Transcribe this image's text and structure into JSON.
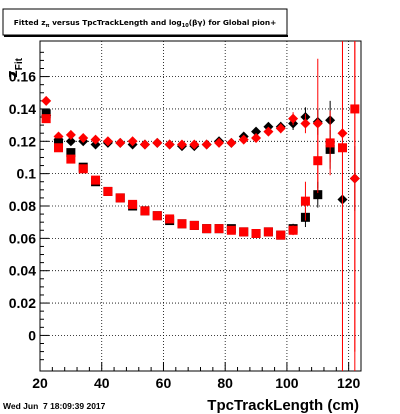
{
  "canvas": {
    "title": "Fitted z_{#pi} versus TpcTrackLength and log_{10}(#beta#gamma) for Global pion+",
    "title_parts": {
      "pre": "Fitted ",
      "z": "z",
      "z_sub": "π",
      "mid": " versus TpcTrackLength and log",
      "log_sub": "10",
      "post": "(βγ) for Global pion+"
    },
    "timestamp": "Wed Jun  7 18:09:39 2017",
    "background": "#ffffff"
  },
  "chart_data": {
    "type": "scatter",
    "xlabel": "TpcTrackLength (cm)",
    "ylabel": "z",
    "ylabel_sub": "Fit",
    "xlim": [
      20,
      124
    ],
    "ylim": [
      -0.022,
      0.182
    ],
    "x_ticks": [
      20,
      40,
      60,
      80,
      100,
      120
    ],
    "x_tick_labels": [
      "20",
      "40",
      "60",
      "80",
      "100",
      "120"
    ],
    "y_ticks": [
      0,
      0.02,
      0.04,
      0.06,
      0.08,
      0.1,
      0.12,
      0.14,
      0.16
    ],
    "y_tick_labels": [
      "0",
      "0.02",
      "0.04",
      "0.06",
      "0.08",
      "0.1",
      "0.12",
      "0.14",
      "0.16"
    ],
    "grid": true,
    "series": [
      {
        "marker": "diamond",
        "color": "#000000",
        "points": [
          {
            "x": 22,
            "y": 0.136,
            "err": 0.002
          },
          {
            "x": 26,
            "y": 0.121,
            "err": 0.001
          },
          {
            "x": 30,
            "y": 0.12,
            "err": 0.001
          },
          {
            "x": 34,
            "y": 0.12,
            "err": 0.001
          },
          {
            "x": 38,
            "y": 0.118,
            "err": 0.001
          },
          {
            "x": 42,
            "y": 0.119,
            "err": 0.001
          },
          {
            "x": 46,
            "y": 0.119,
            "err": 0.001
          },
          {
            "x": 50,
            "y": 0.118,
            "err": 0.001
          },
          {
            "x": 54,
            "y": 0.118,
            "err": 0.001
          },
          {
            "x": 58,
            "y": 0.119,
            "err": 0.001
          },
          {
            "x": 62,
            "y": 0.118,
            "err": 0.001
          },
          {
            "x": 66,
            "y": 0.117,
            "err": 0.001
          },
          {
            "x": 70,
            "y": 0.117,
            "err": 0.001
          },
          {
            "x": 74,
            "y": 0.118,
            "err": 0.001
          },
          {
            "x": 78,
            "y": 0.12,
            "err": 0.001
          },
          {
            "x": 82,
            "y": 0.119,
            "err": 0.001
          },
          {
            "x": 86,
            "y": 0.123,
            "err": 0.002
          },
          {
            "x": 90,
            "y": 0.126,
            "err": 0.002
          },
          {
            "x": 94,
            "y": 0.129,
            "err": 0.002
          },
          {
            "x": 98,
            "y": 0.129,
            "err": 0.003
          },
          {
            "x": 102,
            "y": 0.131,
            "err": 0.004
          },
          {
            "x": 106,
            "y": 0.135,
            "err": 0.006
          },
          {
            "x": 110,
            "y": 0.132,
            "err": 0.008
          },
          {
            "x": 114,
            "y": 0.133,
            "err": 0.012
          },
          {
            "x": 118,
            "y": 0.084,
            "err": 0.04
          },
          {
            "x": 122,
            "y": 0.097,
            "err": 0.02
          }
        ]
      },
      {
        "marker": "diamond",
        "color": "#ff0000",
        "points": [
          {
            "x": 22,
            "y": 0.145,
            "err": 0.002
          },
          {
            "x": 26,
            "y": 0.123,
            "err": 0.001
          },
          {
            "x": 30,
            "y": 0.124,
            "err": 0.001
          },
          {
            "x": 34,
            "y": 0.122,
            "err": 0.001
          },
          {
            "x": 38,
            "y": 0.121,
            "err": 0.001
          },
          {
            "x": 42,
            "y": 0.12,
            "err": 0.001
          },
          {
            "x": 46,
            "y": 0.119,
            "err": 0.001
          },
          {
            "x": 50,
            "y": 0.12,
            "err": 0.001
          },
          {
            "x": 54,
            "y": 0.118,
            "err": 0.001
          },
          {
            "x": 58,
            "y": 0.119,
            "err": 0.001
          },
          {
            "x": 62,
            "y": 0.118,
            "err": 0.001
          },
          {
            "x": 66,
            "y": 0.118,
            "err": 0.001
          },
          {
            "x": 70,
            "y": 0.118,
            "err": 0.001
          },
          {
            "x": 74,
            "y": 0.118,
            "err": 0.001
          },
          {
            "x": 78,
            "y": 0.119,
            "err": 0.001
          },
          {
            "x": 82,
            "y": 0.119,
            "err": 0.001
          },
          {
            "x": 86,
            "y": 0.121,
            "err": 0.002
          },
          {
            "x": 90,
            "y": 0.122,
            "err": 0.002
          },
          {
            "x": 94,
            "y": 0.126,
            "err": 0.002
          },
          {
            "x": 98,
            "y": 0.128,
            "err": 0.003
          },
          {
            "x": 102,
            "y": 0.134,
            "err": 0.004
          },
          {
            "x": 106,
            "y": 0.131,
            "err": 0.006
          },
          {
            "x": 110,
            "y": 0.131,
            "err": 0.04
          },
          {
            "x": 114,
            "y": 0.119,
            "err": 0.012
          },
          {
            "x": 118,
            "y": 0.125,
            "err": 0.15
          },
          {
            "x": 122,
            "y": 0.097,
            "err": 0.15
          }
        ]
      },
      {
        "marker": "square",
        "color": "#000000",
        "points": [
          {
            "x": 22,
            "y": 0.137,
            "err": 0.002
          },
          {
            "x": 26,
            "y": 0.119,
            "err": 0.001
          },
          {
            "x": 30,
            "y": 0.113,
            "err": 0.001
          },
          {
            "x": 34,
            "y": 0.104,
            "err": 0.001
          },
          {
            "x": 38,
            "y": 0.095,
            "err": 0.001
          },
          {
            "x": 42,
            "y": 0.089,
            "err": 0.001
          },
          {
            "x": 46,
            "y": 0.085,
            "err": 0.001
          },
          {
            "x": 50,
            "y": 0.08,
            "err": 0.001
          },
          {
            "x": 54,
            "y": 0.077,
            "err": 0.001
          },
          {
            "x": 58,
            "y": 0.074,
            "err": 0.001
          },
          {
            "x": 62,
            "y": 0.071,
            "err": 0.001
          },
          {
            "x": 66,
            "y": 0.069,
            "err": 0.001
          },
          {
            "x": 70,
            "y": 0.068,
            "err": 0.001
          },
          {
            "x": 74,
            "y": 0.066,
            "err": 0.001
          },
          {
            "x": 78,
            "y": 0.066,
            "err": 0.001
          },
          {
            "x": 82,
            "y": 0.066,
            "err": 0.001
          },
          {
            "x": 86,
            "y": 0.064,
            "err": 0.001
          },
          {
            "x": 90,
            "y": 0.063,
            "err": 0.001
          },
          {
            "x": 94,
            "y": 0.064,
            "err": 0.002
          },
          {
            "x": 98,
            "y": 0.062,
            "err": 0.002
          },
          {
            "x": 102,
            "y": 0.066,
            "err": 0.003
          },
          {
            "x": 106,
            "y": 0.073,
            "err": 0.006
          },
          {
            "x": 110,
            "y": 0.087,
            "err": 0.008
          },
          {
            "x": 114,
            "y": 0.115,
            "err": 0.012
          }
        ]
      },
      {
        "marker": "square",
        "color": "#ff0000",
        "points": [
          {
            "x": 22,
            "y": 0.134,
            "err": 0.002
          },
          {
            "x": 26,
            "y": 0.116,
            "err": 0.001
          },
          {
            "x": 30,
            "y": 0.109,
            "err": 0.001
          },
          {
            "x": 34,
            "y": 0.103,
            "err": 0.001
          },
          {
            "x": 38,
            "y": 0.096,
            "err": 0.001
          },
          {
            "x": 42,
            "y": 0.089,
            "err": 0.001
          },
          {
            "x": 46,
            "y": 0.085,
            "err": 0.001
          },
          {
            "x": 50,
            "y": 0.081,
            "err": 0.001
          },
          {
            "x": 54,
            "y": 0.077,
            "err": 0.001
          },
          {
            "x": 58,
            "y": 0.074,
            "err": 0.001
          },
          {
            "x": 62,
            "y": 0.072,
            "err": 0.001
          },
          {
            "x": 66,
            "y": 0.069,
            "err": 0.001
          },
          {
            "x": 70,
            "y": 0.068,
            "err": 0.001
          },
          {
            "x": 74,
            "y": 0.066,
            "err": 0.001
          },
          {
            "x": 78,
            "y": 0.066,
            "err": 0.001
          },
          {
            "x": 82,
            "y": 0.065,
            "err": 0.001
          },
          {
            "x": 86,
            "y": 0.064,
            "err": 0.001
          },
          {
            "x": 90,
            "y": 0.063,
            "err": 0.001
          },
          {
            "x": 94,
            "y": 0.064,
            "err": 0.002
          },
          {
            "x": 98,
            "y": 0.062,
            "err": 0.002
          },
          {
            "x": 102,
            "y": 0.065,
            "err": 0.003
          },
          {
            "x": 106,
            "y": 0.083,
            "err": 0.012
          },
          {
            "x": 110,
            "y": 0.108,
            "err": 0.02
          },
          {
            "x": 114,
            "y": 0.119,
            "err": 0.02
          },
          {
            "x": 118,
            "y": 0.116,
            "err": 0.15
          },
          {
            "x": 122,
            "y": 0.14,
            "err": 0.15
          }
        ]
      }
    ]
  }
}
